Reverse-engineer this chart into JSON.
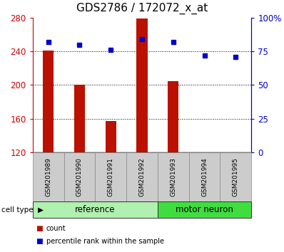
{
  "title": "GDS2786 / 172072_x_at",
  "samples": [
    "GSM201989",
    "GSM201990",
    "GSM201991",
    "GSM201992",
    "GSM201993",
    "GSM201994",
    "GSM201995"
  ],
  "counts": [
    241,
    200,
    157,
    279,
    205,
    120,
    120
  ],
  "percentile_ranks": [
    82,
    80,
    76,
    84,
    82,
    72,
    71
  ],
  "y_min": 120,
  "y_max": 280,
  "y_ticks": [
    120,
    160,
    200,
    240,
    280
  ],
  "right_y_ticks": [
    0,
    25,
    50,
    75,
    100
  ],
  "right_y_labels": [
    "0",
    "25",
    "50",
    "75",
    "100%"
  ],
  "groups": [
    {
      "label": "reference",
      "indices": [
        0,
        1,
        2,
        3
      ],
      "color": "#b0f0b0"
    },
    {
      "label": "motor neuron",
      "indices": [
        4,
        5,
        6
      ],
      "color": "#40dd40"
    }
  ],
  "bar_color": "#bb1100",
  "dot_color": "#0000cc",
  "left_axis_color": "#cc0000",
  "right_axis_color": "#0000cc",
  "bar_width": 0.35,
  "cell_type_label": "cell type",
  "legend_count_label": "count",
  "legend_percentile_label": "percentile rank within the sample",
  "tick_label_area_bg": "#cccccc",
  "group_label_fontsize": 8.5,
  "title_fontsize": 11
}
